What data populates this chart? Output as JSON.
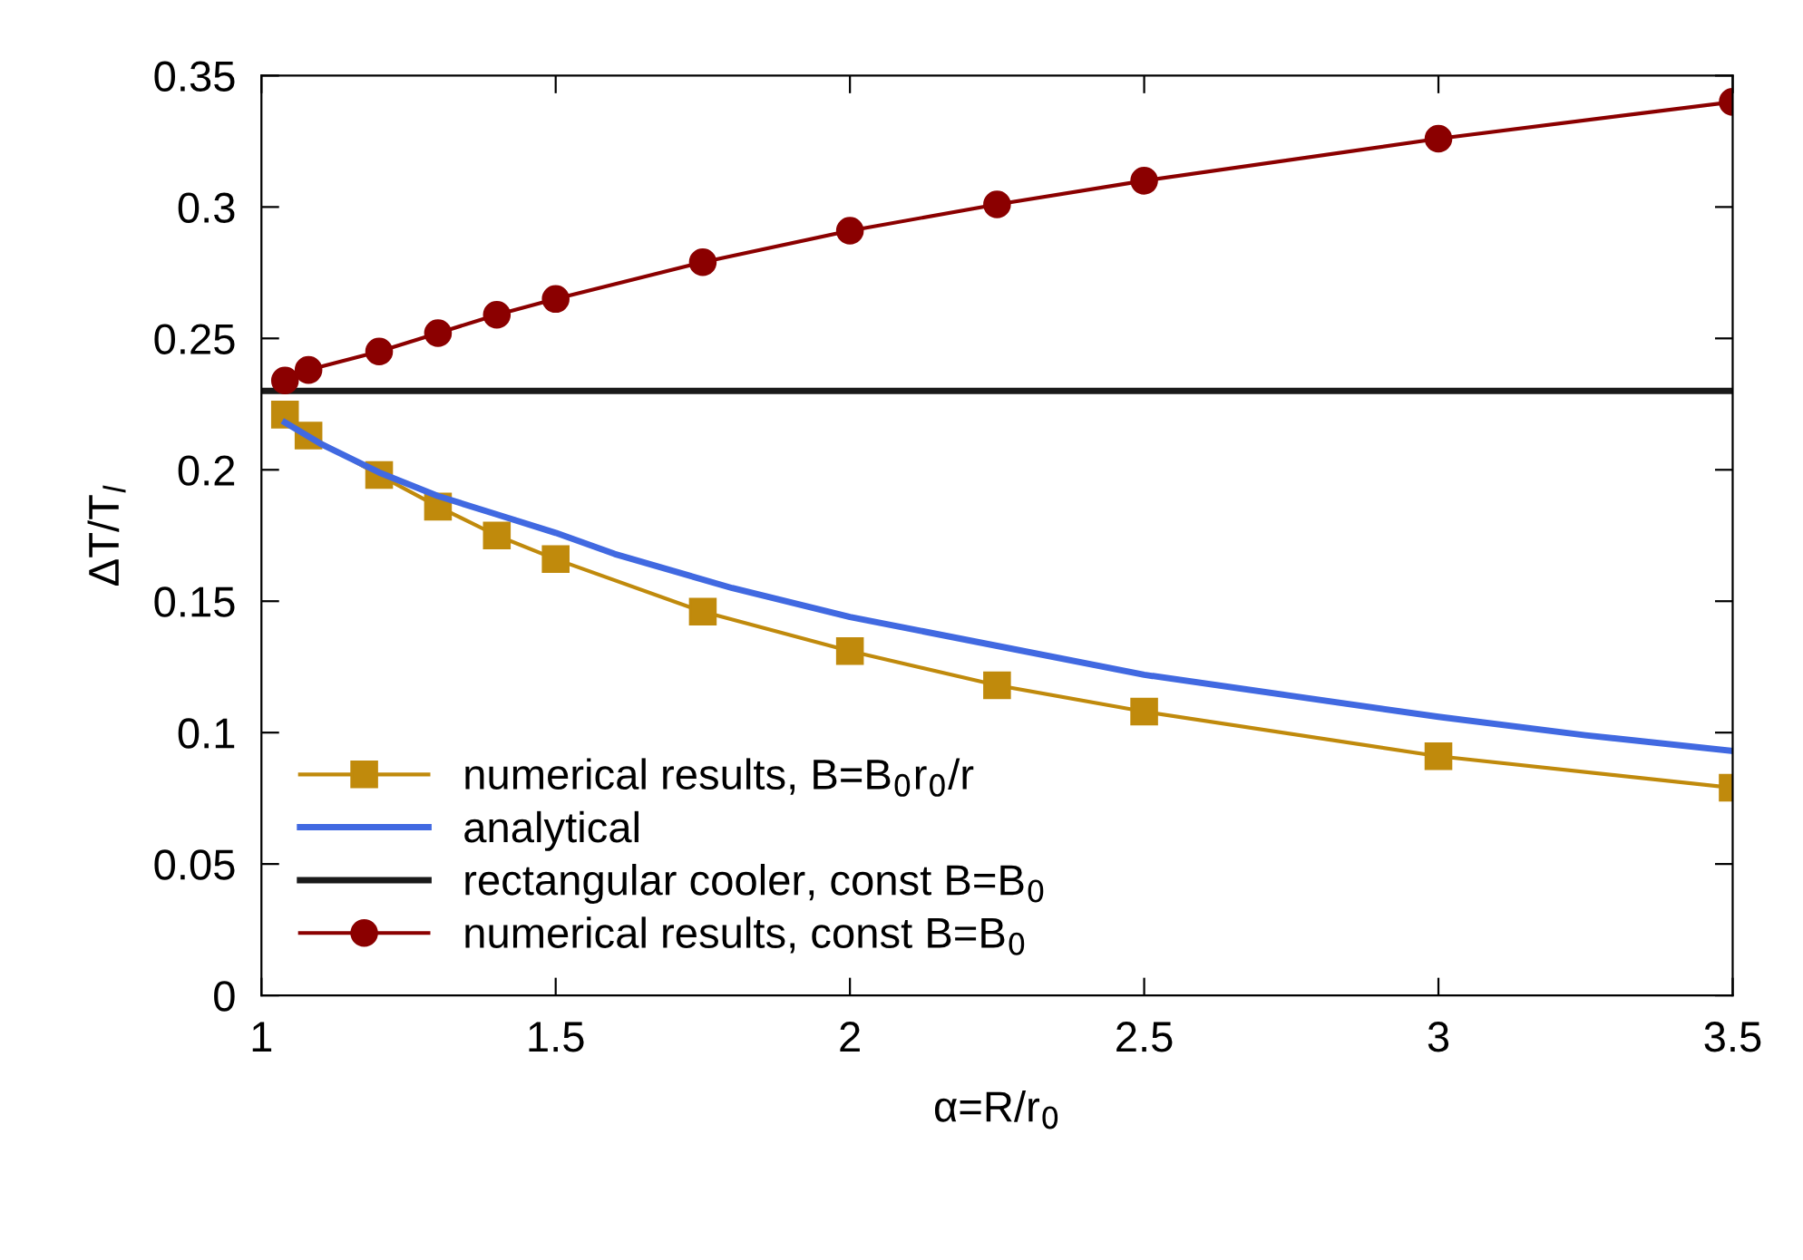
{
  "chart_data": {
    "type": "line",
    "xlabel": "α=R/r$_{0}$",
    "ylabel": "ΔT/T$_{l}$",
    "xlim": [
      1,
      3.5
    ],
    "ylim": [
      0,
      0.35
    ],
    "xticks": [
      1,
      1.5,
      2,
      2.5,
      3,
      3.5
    ],
    "yticks": [
      0,
      0.05,
      0.1,
      0.15,
      0.2,
      0.25,
      0.3,
      0.35
    ],
    "grid": false,
    "legend": "bottom left",
    "series": [
      {
        "name": "numerical results, B=B$_{0}$r$_{0}$/r",
        "color": "#c08a0c",
        "marker": "square",
        "x": [
          1.04,
          1.08,
          1.2,
          1.3,
          1.4,
          1.5,
          1.75,
          2,
          2.25,
          2.5,
          3,
          3.5
        ],
        "values": [
          0.221,
          0.213,
          0.198,
          0.186,
          0.175,
          0.166,
          0.146,
          0.131,
          0.118,
          0.108,
          0.091,
          0.079
        ]
      },
      {
        "name": "analytical",
        "color": "#4169e1",
        "marker": "none",
        "x": [
          1.04,
          1.1,
          1.2,
          1.3,
          1.4,
          1.5,
          1.6,
          1.8,
          2,
          2.25,
          2.5,
          2.75,
          3,
          3.25,
          3.5
        ],
        "values": [
          0.218,
          0.21,
          0.199,
          0.19,
          0.183,
          0.176,
          0.168,
          0.155,
          0.144,
          0.133,
          0.122,
          0.114,
          0.106,
          0.099,
          0.093
        ]
      },
      {
        "name": "rectangular cooler, const B=B$_{0}$",
        "color": "#1a1a1a",
        "marker": "none",
        "x": [
          1,
          3.5
        ],
        "values": [
          0.23,
          0.23
        ]
      },
      {
        "name": "numerical results, const B=B$_{0}$",
        "color": "#8b0000",
        "marker": "circle",
        "x": [
          1.04,
          1.08,
          1.2,
          1.3,
          1.4,
          1.5,
          1.75,
          2,
          2.25,
          2.5,
          3,
          3.5
        ],
        "values": [
          0.234,
          0.238,
          0.245,
          0.252,
          0.259,
          0.265,
          0.279,
          0.291,
          0.301,
          0.31,
          0.326,
          0.34
        ]
      }
    ]
  }
}
